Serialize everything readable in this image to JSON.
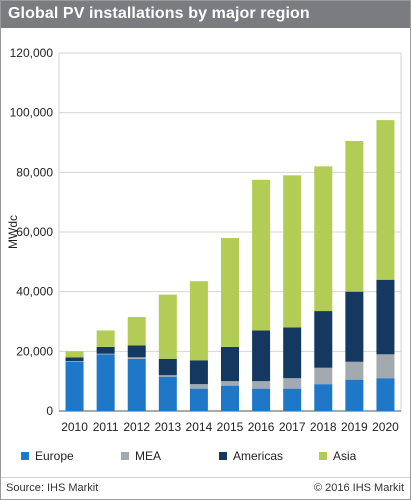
{
  "title": "Global PV installations  by major region",
  "footer": {
    "source": "Source: IHS Markit",
    "copyright": "© 2016 IHS Markit"
  },
  "colors": {
    "title_bar": "#7a7c80",
    "Europe": "#1f77c8",
    "MEA": "#a2aab0",
    "Americas": "#14385f",
    "Asia": "#b3cc55"
  },
  "chart_data": {
    "type": "bar",
    "stacked": true,
    "title": "Global PV installations  by major region",
    "xlabel": "",
    "ylabel": "MWdc",
    "ylim": [
      0,
      120000
    ],
    "yticks": [
      0,
      20000,
      40000,
      60000,
      80000,
      100000,
      120000
    ],
    "ytick_labels": [
      "0",
      "20,000",
      "40,000",
      "60,000",
      "80,000",
      "100,000",
      "120,000"
    ],
    "grid": true,
    "legend": "bottom",
    "categories": [
      "2010",
      "2011",
      "2012",
      "2013",
      "2014",
      "2015",
      "2016",
      "2017",
      "2018",
      "2019",
      "2020"
    ],
    "series": [
      {
        "name": "Europe",
        "values": [
          16500,
          19000,
          17500,
          11500,
          7500,
          8500,
          7500,
          7500,
          9000,
          10500,
          11000
        ]
      },
      {
        "name": "MEA",
        "values": [
          200,
          200,
          500,
          500,
          1500,
          1500,
          2500,
          3500,
          5500,
          6000,
          8000
        ]
      },
      {
        "name": "Americas",
        "values": [
          1300,
          2300,
          4000,
          5500,
          8000,
          11500,
          17000,
          17000,
          19000,
          23500,
          25000
        ]
      },
      {
        "name": "Asia",
        "values": [
          2000,
          5500,
          9500,
          21500,
          26500,
          36500,
          50500,
          51000,
          48500,
          50500,
          53500
        ]
      }
    ]
  }
}
